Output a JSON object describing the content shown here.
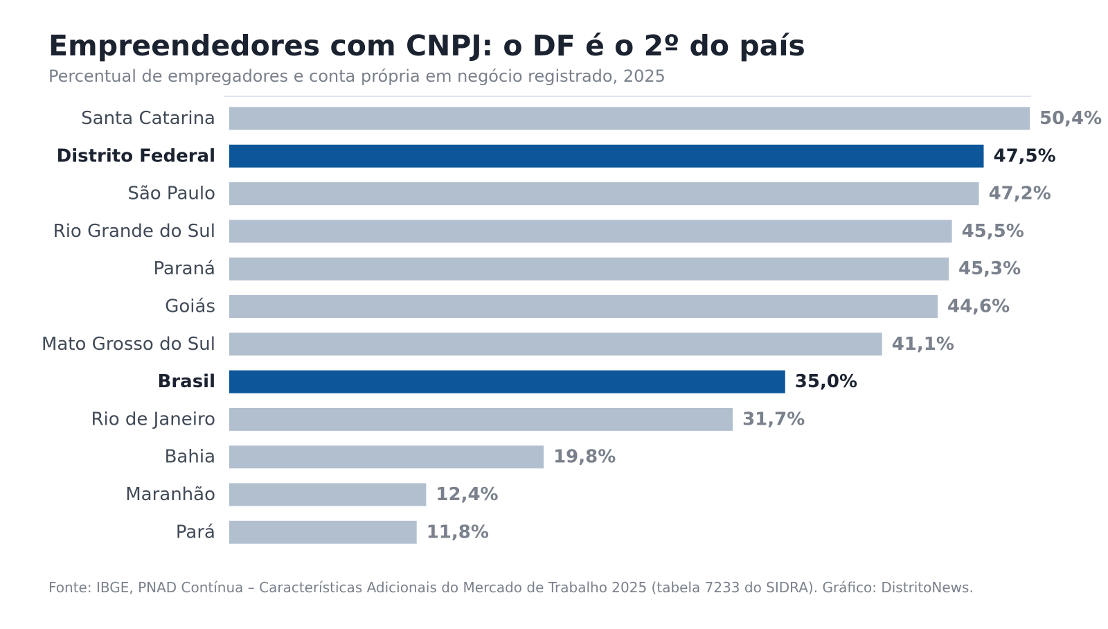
{
  "header": {
    "title": "Empreendedores com CNPJ: o DF é o 2º do país",
    "subtitle": "Percentual de empregadores e conta própria em negócio registrado, 2025"
  },
  "footer": {
    "source": "Fonte: IBGE, PNAD Contínua – Características Adicionais do Mercado de Trabalho 2025 (tabela 7233 do SIDRA). Gráfico: DistritoNews."
  },
  "colors": {
    "highlight": "#0d5699",
    "default_bar": "#b2bfcf",
    "highlight_text": "#1b2230",
    "default_label_text": "#414a57",
    "default_value_text": "#7a818c",
    "top_rule": "#dfe4ec"
  },
  "chart_data": {
    "type": "bar",
    "orientation": "horizontal",
    "title": "Empreendedores com CNPJ: o DF é o 2º do país",
    "subtitle": "Percentual de empregadores e conta própria em negócio registrado, 2025",
    "categories": [
      "Santa Catarina",
      "Distrito Federal",
      "São Paulo",
      "Rio Grande do Sul",
      "Paraná",
      "Goiás",
      "Mato Grosso do Sul",
      "Brasil",
      "Rio de Janeiro",
      "Bahia",
      "Maranhão",
      "Pará"
    ],
    "values": [
      50.4,
      47.5,
      47.2,
      45.5,
      45.3,
      44.6,
      41.1,
      35.0,
      31.7,
      19.8,
      12.4,
      11.8
    ],
    "value_labels": [
      "50,4%",
      "47,5%",
      "47,2%",
      "45,5%",
      "45,3%",
      "44,6%",
      "41,1%",
      "35,0%",
      "31,7%",
      "19,8%",
      "12,4%",
      "11,8%"
    ],
    "highlighted": [
      false,
      true,
      false,
      false,
      false,
      false,
      false,
      true,
      false,
      false,
      false,
      false
    ],
    "xlim": [
      0,
      50.4
    ],
    "grid": false,
    "legend": "none",
    "xlabel": "",
    "ylabel": ""
  }
}
